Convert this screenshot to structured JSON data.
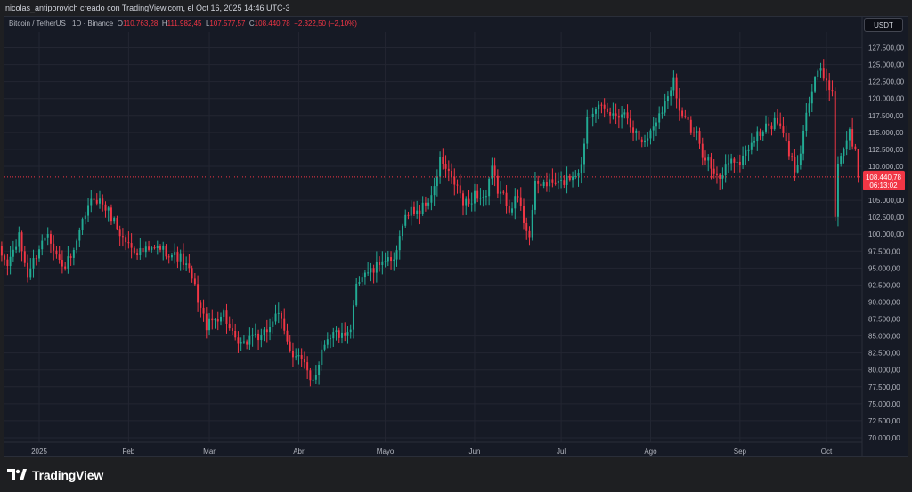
{
  "header": {
    "attribution": "nicolas_antiporovich creado con TradingView.com, el Oct 16, 2025 14:46 UTC-3"
  },
  "legend": {
    "symbol": "Bitcoin / TetherUS · 1D · Binance",
    "open_label": "O",
    "open": "110.763,28",
    "high_label": "H",
    "high": "111.982,45",
    "low_label": "L",
    "low": "107.577,57",
    "close_label": "C",
    "close": "108.440,78",
    "change": "−2.322,50 (−2,10%)"
  },
  "currency_button": "USDT",
  "price_badge": {
    "price": "108.440,78",
    "countdown": "06:13:02"
  },
  "footer": {
    "brand": "TradingView",
    "logo_icon": "tradingview-logo-icon"
  },
  "colors": {
    "up": "#22ab94",
    "down": "#f23645",
    "grid": "#232632",
    "bg": "#161a25"
  },
  "chart_data": {
    "type": "candlestick",
    "ylim": [
      70000,
      127500
    ],
    "y_ticks": [
      {
        "v": 127500,
        "label": "127.500,00"
      },
      {
        "v": 125000,
        "label": "125.000,00"
      },
      {
        "v": 122500,
        "label": "122.500,00"
      },
      {
        "v": 120000,
        "label": "120.000,00"
      },
      {
        "v": 117500,
        "label": "117.500,00"
      },
      {
        "v": 115000,
        "label": "115.000,00"
      },
      {
        "v": 112500,
        "label": "112.500,00"
      },
      {
        "v": 110000,
        "label": "110.000,00"
      },
      {
        "v": 105000,
        "label": "105.000,00"
      },
      {
        "v": 102500,
        "label": "102.500,00"
      },
      {
        "v": 100000,
        "label": "100.000,00"
      },
      {
        "v": 97500,
        "label": "97.500,00"
      },
      {
        "v": 95000,
        "label": "95.000,00"
      },
      {
        "v": 92500,
        "label": "92.500,00"
      },
      {
        "v": 90000,
        "label": "90.000,00"
      },
      {
        "v": 87500,
        "label": "87.500,00"
      },
      {
        "v": 85000,
        "label": "85.000,00"
      },
      {
        "v": 82500,
        "label": "82.500,00"
      },
      {
        "v": 80000,
        "label": "80.000,00"
      },
      {
        "v": 77500,
        "label": "77.500,00"
      },
      {
        "v": 75000,
        "label": "75.000,00"
      },
      {
        "v": 72500,
        "label": "72.500,00"
      },
      {
        "v": 70000,
        "label": "70.000,00"
      }
    ],
    "x_ticks": [
      {
        "day": 14,
        "label": "2025"
      },
      {
        "day": 45,
        "label": "Feb"
      },
      {
        "day": 73,
        "label": "Mar"
      },
      {
        "day": 104,
        "label": "Abr"
      },
      {
        "day": 134,
        "label": "Mayo"
      },
      {
        "day": 165,
        "label": "Jun"
      },
      {
        "day": 195,
        "label": "Jul"
      },
      {
        "day": 226,
        "label": "Ago"
      },
      {
        "day": 257,
        "label": "Sep"
      },
      {
        "day": 287,
        "label": "Oct"
      }
    ],
    "current_price": 108440.78,
    "close_path": [
      [
        0,
        97500
      ],
      [
        3,
        95500
      ],
      [
        7,
        99500
      ],
      [
        10,
        94000
      ],
      [
        14,
        98000
      ],
      [
        17,
        100500
      ],
      [
        20,
        97000
      ],
      [
        22,
        95000
      ],
      [
        26,
        97000
      ],
      [
        30,
        103000
      ],
      [
        33,
        105500
      ],
      [
        36,
        104500
      ],
      [
        40,
        102000
      ],
      [
        42,
        100000
      ],
      [
        45,
        98500
      ],
      [
        48,
        97500
      ],
      [
        52,
        97500
      ],
      [
        56,
        98000
      ],
      [
        60,
        97000
      ],
      [
        63,
        96500
      ],
      [
        66,
        94500
      ],
      [
        68,
        92000
      ],
      [
        70,
        89000
      ],
      [
        72,
        86500
      ],
      [
        75,
        87500
      ],
      [
        78,
        88500
      ],
      [
        80,
        86000
      ],
      [
        82,
        84000
      ],
      [
        85,
        83500
      ],
      [
        88,
        85500
      ],
      [
        91,
        84500
      ],
      [
        94,
        86500
      ],
      [
        96,
        88500
      ],
      [
        98,
        87000
      ],
      [
        100,
        84000
      ],
      [
        102,
        82500
      ],
      [
        104,
        82000
      ],
      [
        106,
        80500
      ],
      [
        108,
        78500
      ],
      [
        110,
        79500
      ],
      [
        112,
        83000
      ],
      [
        114,
        85000
      ],
      [
        117,
        85500
      ],
      [
        120,
        84500
      ],
      [
        122,
        85500
      ],
      [
        124,
        93000
      ],
      [
        127,
        94500
      ],
      [
        130,
        94500
      ],
      [
        133,
        96500
      ],
      [
        136,
        95500
      ],
      [
        138,
        97000
      ],
      [
        140,
        102000
      ],
      [
        143,
        103500
      ],
      [
        146,
        103500
      ],
      [
        149,
        105000
      ],
      [
        151,
        106500
      ],
      [
        153,
        111000
      ],
      [
        155,
        109500
      ],
      [
        157,
        108000
      ],
      [
        159,
        107000
      ],
      [
        161,
        104500
      ],
      [
        163,
        104500
      ],
      [
        165,
        106000
      ],
      [
        167,
        105500
      ],
      [
        169,
        105500
      ],
      [
        171,
        109500
      ],
      [
        173,
        106500
      ],
      [
        175,
        105500
      ],
      [
        177,
        104000
      ],
      [
        180,
        105500
      ],
      [
        182,
        102000
      ],
      [
        184,
        100000
      ],
      [
        186,
        107000
      ],
      [
        189,
        107500
      ],
      [
        192,
        107500
      ],
      [
        195,
        107500
      ],
      [
        198,
        108500
      ],
      [
        200,
        109000
      ],
      [
        202,
        110000
      ],
      [
        204,
        117500
      ],
      [
        207,
        119000
      ],
      [
        210,
        118000
      ],
      [
        213,
        117500
      ],
      [
        216,
        118000
      ],
      [
        218,
        117500
      ],
      [
        220,
        115500
      ],
      [
        223,
        113500
      ],
      [
        226,
        115000
      ],
      [
        229,
        118000
      ],
      [
        232,
        120000
      ],
      [
        234,
        123500
      ],
      [
        236,
        118000
      ],
      [
        238,
        117500
      ],
      [
        240,
        115000
      ],
      [
        242,
        114500
      ],
      [
        244,
        112000
      ],
      [
        246,
        111000
      ],
      [
        248,
        108500
      ],
      [
        250,
        108000
      ],
      [
        252,
        110000
      ],
      [
        254,
        111500
      ],
      [
        256,
        110000
      ],
      [
        258,
        111500
      ],
      [
        261,
        113500
      ],
      [
        264,
        115000
      ],
      [
        267,
        116000
      ],
      [
        270,
        116500
      ],
      [
        272,
        114500
      ],
      [
        274,
        112000
      ],
      [
        276,
        109500
      ],
      [
        278,
        112500
      ],
      [
        280,
        118000
      ],
      [
        282,
        121000
      ],
      [
        284,
        124000
      ],
      [
        286,
        123500
      ],
      [
        288,
        122000
      ],
      [
        289,
        120500
      ],
      [
        290,
        103000
      ],
      [
        291,
        110500
      ],
      [
        293,
        113000
      ],
      [
        295,
        115000
      ],
      [
        297,
        112000
      ],
      [
        298,
        108440.78
      ]
    ]
  }
}
